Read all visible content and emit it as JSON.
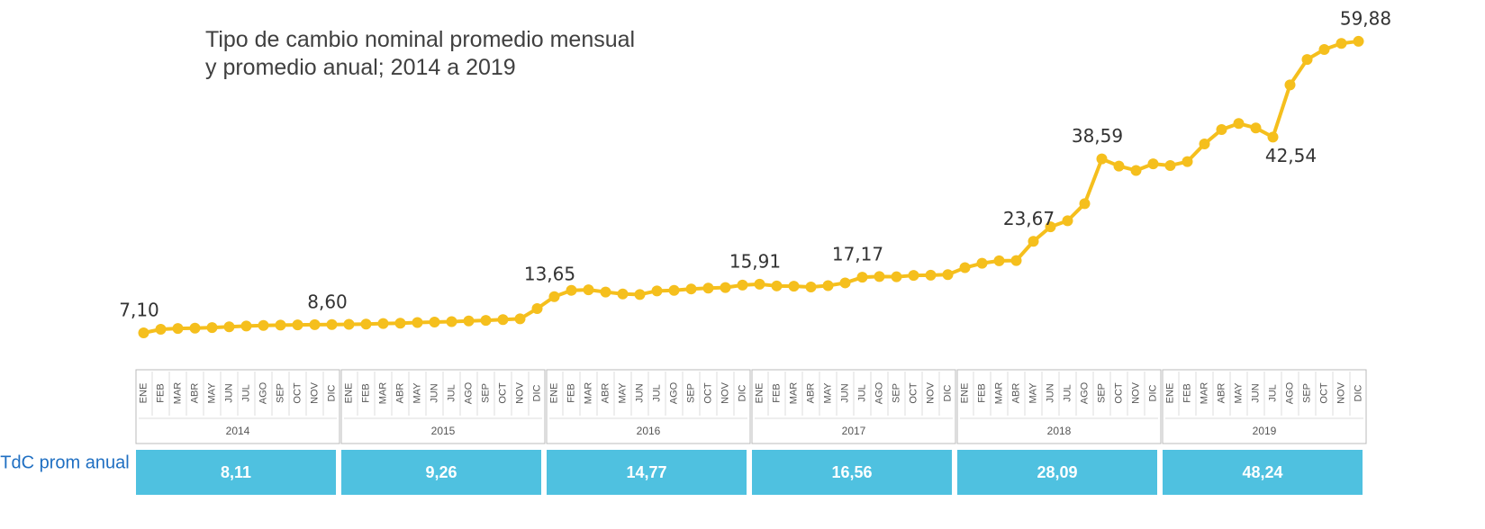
{
  "chart_data": {
    "type": "line",
    "subtitle": [
      "Tipo de cambio nominal promedio mensual",
      "y promedio anual; 2014 a 2019"
    ],
    "categories": [
      "ENE",
      "FEB",
      "MAR",
      "ABR",
      "MAY",
      "JUN",
      "JUL",
      "AGO",
      "SEP",
      "OCT",
      "NOV",
      "DIC",
      "ENE",
      "FEB",
      "MAR",
      "ABR",
      "MAY",
      "JUN",
      "JUL",
      "AGO",
      "SEP",
      "OCT",
      "NOV",
      "DIC",
      "ENE",
      "FEB",
      "MAR",
      "ABR",
      "MAY",
      "JUN",
      "JUL",
      "AGO",
      "SEP",
      "OCT",
      "NOV",
      "DIC",
      "ENE",
      "FEB",
      "MAR",
      "ABR",
      "MAY",
      "JUN",
      "JUL",
      "AGO",
      "SEP",
      "OCT",
      "NOV",
      "DIC",
      "ENE",
      "FEB",
      "MAR",
      "ABR",
      "MAY",
      "JUN",
      "JUL",
      "AGO",
      "SEP",
      "OCT",
      "NOV",
      "DIC",
      "ENE",
      "FEB",
      "MAR",
      "ABR",
      "MAY",
      "JUN",
      "JUL",
      "AGO",
      "SEP",
      "OCT",
      "NOV",
      "DIC"
    ],
    "years": [
      "2014",
      "2015",
      "2016",
      "2017",
      "2018",
      "2019"
    ],
    "color": "#f5bf1d",
    "ylim": [
      0,
      65
    ],
    "values": [
      7.1,
      7.75,
      7.9,
      7.95,
      8.05,
      8.2,
      8.35,
      8.45,
      8.5,
      8.55,
      8.58,
      8.6,
      8.64,
      8.69,
      8.79,
      8.86,
      8.97,
      9.05,
      9.14,
      9.25,
      9.36,
      9.5,
      9.64,
      11.5,
      13.65,
      14.8,
      14.9,
      14.5,
      14.15,
      14.05,
      14.7,
      14.8,
      15.05,
      15.2,
      15.3,
      15.75,
      15.91,
      15.6,
      15.55,
      15.4,
      15.65,
      16.15,
      17.17,
      17.3,
      17.25,
      17.5,
      17.55,
      17.65,
      18.9,
      19.7,
      20.15,
      20.2,
      23.67,
      26.3,
      27.4,
      30.5,
      38.59,
      37.3,
      36.5,
      37.7,
      37.4,
      38.1,
      41.3,
      43.9,
      45.0,
      44.2,
      42.54,
      52.0,
      56.6,
      58.4,
      59.5,
      59.88
    ],
    "value_labels": [
      "7,10",
      null,
      null,
      null,
      null,
      null,
      null,
      null,
      null,
      null,
      null,
      "8,60",
      null,
      null,
      null,
      null,
      null,
      null,
      null,
      null,
      null,
      null,
      null,
      null,
      "13,65",
      null,
      null,
      null,
      null,
      null,
      null,
      null,
      null,
      null,
      null,
      null,
      "15,91",
      null,
      null,
      null,
      null,
      null,
      "17,17",
      null,
      null,
      null,
      null,
      null,
      null,
      null,
      null,
      null,
      "23,67",
      null,
      null,
      null,
      "38,59",
      null,
      null,
      null,
      null,
      null,
      null,
      null,
      null,
      null,
      "42,54",
      null,
      null,
      null,
      null,
      "59,88"
    ],
    "annual": {
      "label": "TdC prom anual",
      "values": [
        8.11,
        9.26,
        14.77,
        16.56,
        28.09,
        48.24
      ],
      "value_labels": [
        "8,11",
        "9,26",
        "14,77",
        "16,56",
        "28,09",
        "48,24"
      ],
      "color": "#4fc1e0"
    }
  }
}
